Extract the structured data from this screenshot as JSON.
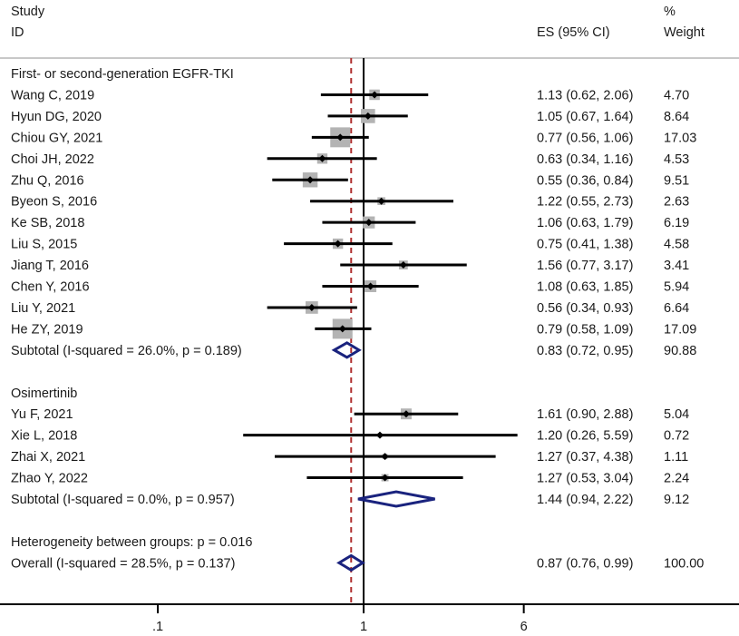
{
  "chart_data": {
    "type": "forest",
    "scale": "log",
    "header": {
      "study_line1": "Study",
      "study_line2": "ID",
      "es_label": "ES (95% CI)",
      "weight_line1": "%",
      "weight_line2": "Weight"
    },
    "xaxis": {
      "ticks": [
        0.1,
        1,
        6
      ],
      "tick_labels": [
        ".1",
        "1",
        "6"
      ],
      "null_value": 1,
      "range": [
        0.0995,
        21
      ]
    },
    "overall_line_value": 0.87,
    "colors": {
      "square": "#b3b3b3",
      "point": "#000000",
      "ci_line": "#000000",
      "diamond": "#1a237e",
      "overall_line": "#b03030",
      "null_line": "#000000",
      "header_rule": "#c8c8c8"
    },
    "rows": [
      {
        "kind": "group",
        "label": "First- or second-generation EGFR-TKI"
      },
      {
        "kind": "study",
        "label": "Wang C, 2019",
        "es": 1.13,
        "lo": 0.62,
        "hi": 2.06,
        "es_text": "1.13 (0.62, 2.06)",
        "weight": 4.7,
        "weight_text": "4.70"
      },
      {
        "kind": "study",
        "label": "Hyun DG, 2020",
        "es": 1.05,
        "lo": 0.67,
        "hi": 1.64,
        "es_text": "1.05 (0.67, 1.64)",
        "weight": 8.64,
        "weight_text": "8.64"
      },
      {
        "kind": "study",
        "label": "Chiou GY, 2021",
        "es": 0.77,
        "lo": 0.56,
        "hi": 1.06,
        "es_text": "0.77 (0.56, 1.06)",
        "weight": 17.03,
        "weight_text": "17.03"
      },
      {
        "kind": "study",
        "label": "Choi JH, 2022",
        "es": 0.63,
        "lo": 0.34,
        "hi": 1.16,
        "es_text": "0.63 (0.34, 1.16)",
        "weight": 4.53,
        "weight_text": "4.53"
      },
      {
        "kind": "study",
        "label": "Zhu Q, 2016",
        "es": 0.55,
        "lo": 0.36,
        "hi": 0.84,
        "es_text": "0.55 (0.36, 0.84)",
        "weight": 9.51,
        "weight_text": "9.51"
      },
      {
        "kind": "study",
        "label": "Byeon S, 2016",
        "es": 1.22,
        "lo": 0.55,
        "hi": 2.73,
        "es_text": "1.22 (0.55, 2.73)",
        "weight": 2.63,
        "weight_text": "2.63"
      },
      {
        "kind": "study",
        "label": "Ke SB, 2018",
        "es": 1.06,
        "lo": 0.63,
        "hi": 1.79,
        "es_text": "1.06 (0.63, 1.79)",
        "weight": 6.19,
        "weight_text": "6.19"
      },
      {
        "kind": "study",
        "label": "Liu S, 2015",
        "es": 0.75,
        "lo": 0.41,
        "hi": 1.38,
        "es_text": "0.75 (0.41, 1.38)",
        "weight": 4.58,
        "weight_text": "4.58"
      },
      {
        "kind": "study",
        "label": "Jiang T, 2016",
        "es": 1.56,
        "lo": 0.77,
        "hi": 3.17,
        "es_text": "1.56 (0.77, 3.17)",
        "weight": 3.41,
        "weight_text": "3.41"
      },
      {
        "kind": "study",
        "label": "Chen Y, 2016",
        "es": 1.08,
        "lo": 0.63,
        "hi": 1.85,
        "es_text": "1.08 (0.63, 1.85)",
        "weight": 5.94,
        "weight_text": "5.94"
      },
      {
        "kind": "study",
        "label": "Liu Y, 2021",
        "es": 0.56,
        "lo": 0.34,
        "hi": 0.93,
        "es_text": "0.56 (0.34, 0.93)",
        "weight": 6.64,
        "weight_text": "6.64"
      },
      {
        "kind": "study",
        "label": "He ZY, 2019",
        "es": 0.79,
        "lo": 0.58,
        "hi": 1.09,
        "es_text": "0.79 (0.58, 1.09)",
        "weight": 17.09,
        "weight_text": "17.09"
      },
      {
        "kind": "subtotal",
        "label": "Subtotal  (I-squared = 26.0%, p = 0.189)",
        "es": 0.83,
        "lo": 0.72,
        "hi": 0.95,
        "es_text": "0.83 (0.72, 0.95)",
        "weight": 90.88,
        "weight_text": "90.88"
      },
      {
        "kind": "blank"
      },
      {
        "kind": "group",
        "label": "Osimertinib"
      },
      {
        "kind": "study",
        "label": "Yu F, 2021",
        "es": 1.61,
        "lo": 0.9,
        "hi": 2.88,
        "es_text": "1.61 (0.90, 2.88)",
        "weight": 5.04,
        "weight_text": "5.04"
      },
      {
        "kind": "study",
        "label": "Xie L, 2018",
        "es": 1.2,
        "lo": 0.26,
        "hi": 5.59,
        "es_text": "1.20 (0.26, 5.59)",
        "weight": 0.72,
        "weight_text": "0.72"
      },
      {
        "kind": "study",
        "label": "Zhai X, 2021",
        "es": 1.27,
        "lo": 0.37,
        "hi": 4.38,
        "es_text": "1.27 (0.37, 4.38)",
        "weight": 1.11,
        "weight_text": "1.11"
      },
      {
        "kind": "study",
        "label": "Zhao Y, 2022",
        "es": 1.27,
        "lo": 0.53,
        "hi": 3.04,
        "es_text": "1.27 (0.53, 3.04)",
        "weight": 2.24,
        "weight_text": "2.24"
      },
      {
        "kind": "subtotal",
        "label": "Subtotal  (I-squared = 0.0%, p = 0.957)",
        "es": 1.44,
        "lo": 0.94,
        "hi": 2.22,
        "es_text": "1.44 (0.94, 2.22)",
        "weight": 9.12,
        "weight_text": "9.12"
      },
      {
        "kind": "blank"
      },
      {
        "kind": "note",
        "label": "Heterogeneity between groups: p = 0.016"
      },
      {
        "kind": "overall",
        "label": "Overall  (I-squared = 28.5%, p = 0.137)",
        "es": 0.87,
        "lo": 0.76,
        "hi": 0.99,
        "es_text": "0.87 (0.76, 0.99)",
        "weight": 100.0,
        "weight_text": "100.00"
      }
    ]
  }
}
